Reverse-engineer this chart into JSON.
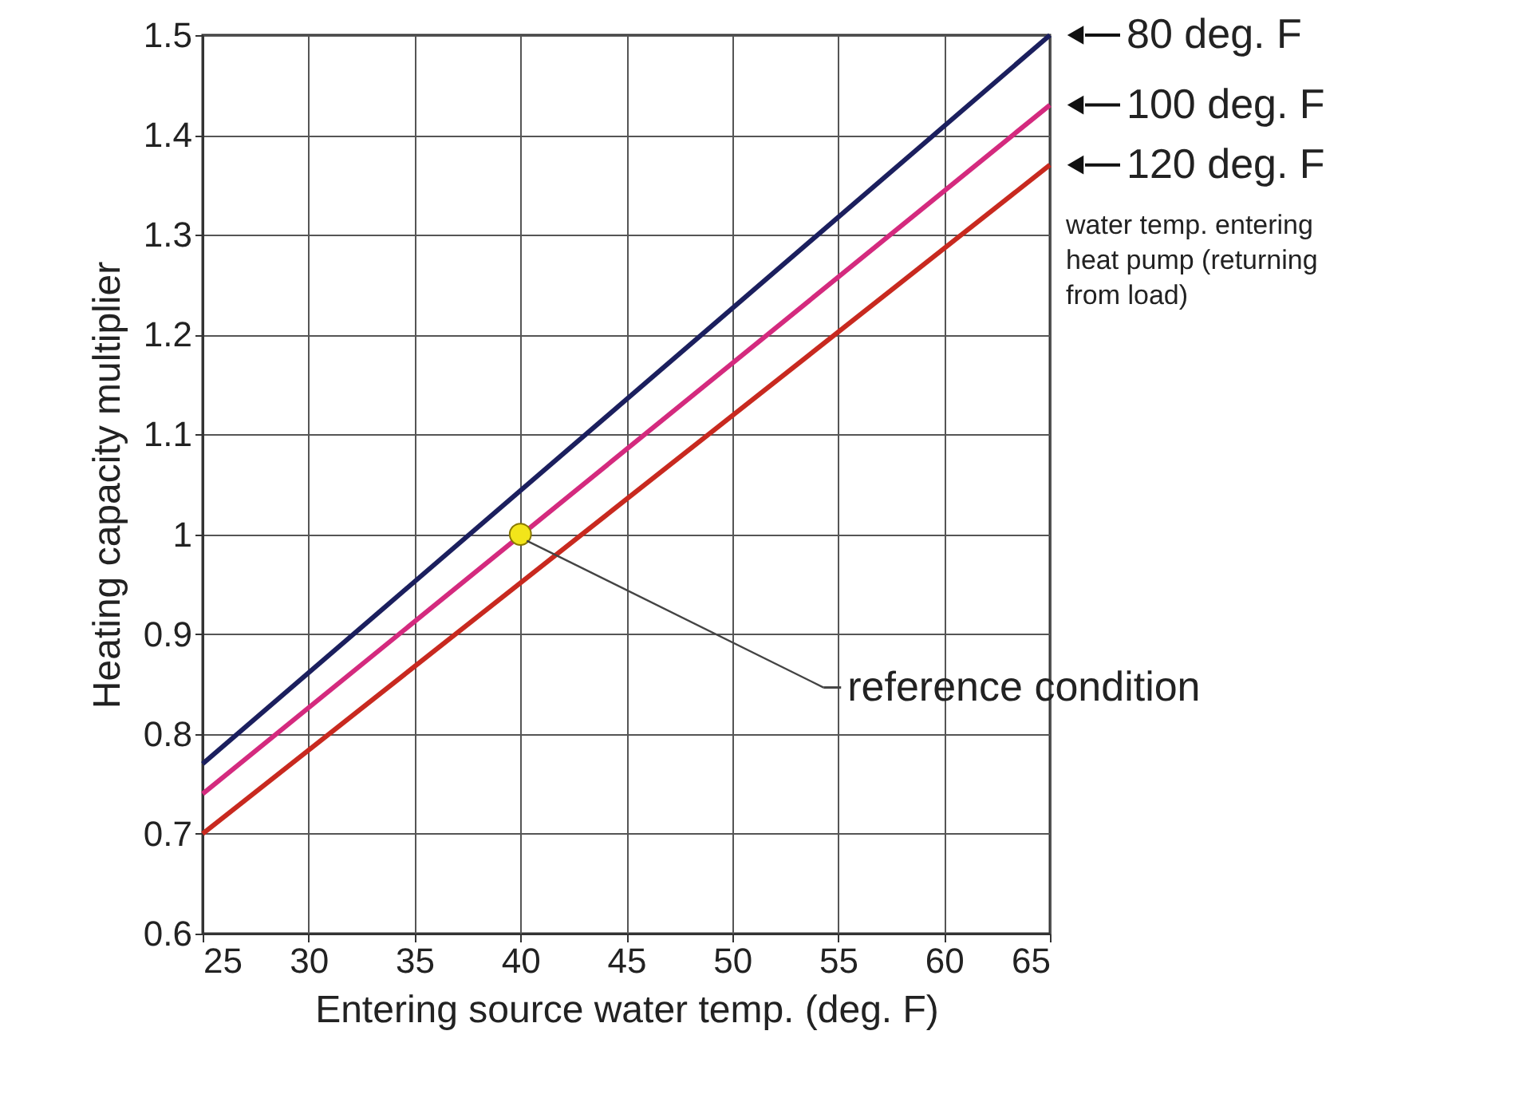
{
  "chart_data": {
    "type": "line",
    "xlabel": "Entering source water temp. (deg. F)",
    "ylabel": "Heating capacity multiplier",
    "legend_title": "water temp. entering heat pump (returning from load)",
    "xlim": [
      25,
      65
    ],
    "xticks": [
      25,
      30,
      35,
      40,
      45,
      50,
      55,
      60,
      65
    ],
    "ylim": [
      0.6,
      1.5
    ],
    "yticks": [
      0.6,
      0.7,
      0.8,
      0.9,
      1,
      1.1,
      1.2,
      1.3,
      1.4,
      1.5
    ],
    "grid": true,
    "marker": "none",
    "line_style": "solid",
    "series": [
      {
        "name": "80 deg. F",
        "color": "#1b1f5e",
        "x": [
          25,
          65
        ],
        "values": [
          0.77,
          1.5
        ]
      },
      {
        "name": "100 deg. F",
        "color": "#d42a7e",
        "x": [
          25,
          65
        ],
        "values": [
          0.74,
          1.43
        ]
      },
      {
        "name": "120 deg. F",
        "color": "#c8291f",
        "x": [
          25,
          65
        ],
        "values": [
          0.7,
          1.37
        ]
      },
      {
        "type": "scatter",
        "color": "#f2e51a",
        "x": [
          40
        ],
        "values": [
          1
        ],
        "marker": "circle"
      }
    ],
    "annotations": [
      {
        "text": "reference condition",
        "x": 40,
        "y": 1
      }
    ]
  }
}
